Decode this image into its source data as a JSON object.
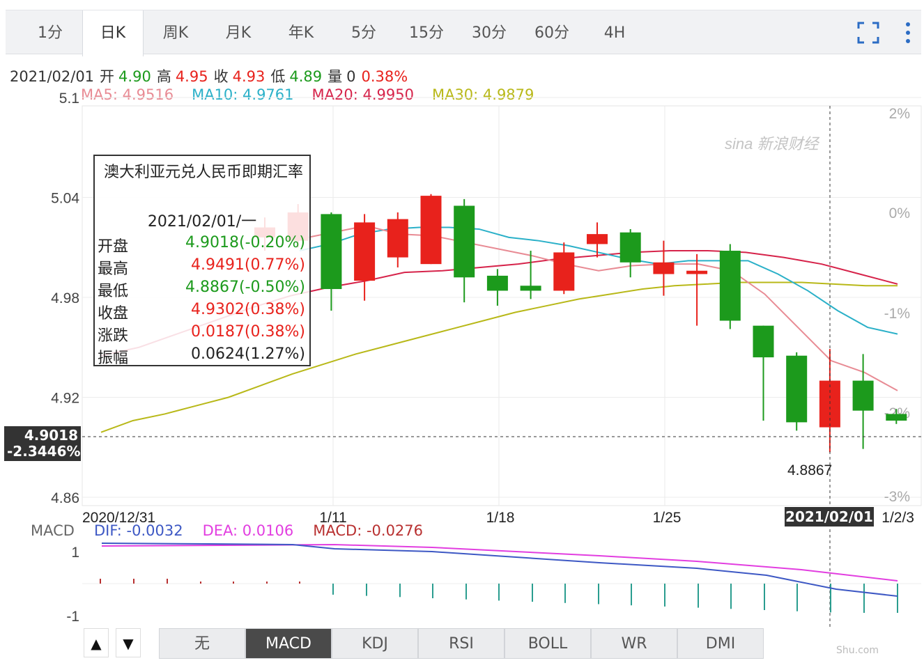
{
  "tabs": [
    {
      "label": "1分",
      "active": false
    },
    {
      "label": "日K",
      "active": true
    },
    {
      "label": "周K",
      "active": false
    },
    {
      "label": "月K",
      "active": false
    },
    {
      "label": "年K",
      "active": false
    },
    {
      "label": "5分",
      "active": false
    },
    {
      "label": "15分",
      "active": false
    },
    {
      "label": "30分",
      "active": false
    },
    {
      "label": "60分",
      "active": false
    },
    {
      "label": "4H",
      "active": false
    }
  ],
  "quote": {
    "date": "2021/02/01",
    "open_label": "开",
    "open": "4.90",
    "high_label": "高",
    "high": "4.95",
    "close_label": "收",
    "close": "4.93",
    "low_label": "低",
    "low": "4.89",
    "volume_label": "量",
    "volume": "0",
    "change": "0.38%"
  },
  "ma": {
    "ma5": "MA5: 4.9516",
    "ma10": "MA10: 4.9761",
    "ma20": "MA20: 4.9950",
    "ma30": "MA30: 4.9879"
  },
  "colors": {
    "up": "#e8221c",
    "down": "#1c9a1c",
    "ma5": "#e88b94",
    "ma10": "#2ab0c8",
    "ma20": "#d6234a",
    "ma30": "#b8b818",
    "dif": "#3d58c4",
    "dea": "#e23ee0",
    "macd": "#b83030"
  },
  "tooltip": {
    "title": "澳大利亚元兑人民币即期汇率",
    "date": "2021/02/01/一",
    "rows": [
      {
        "k": "开盘",
        "v": "4.9018(-0.20%)",
        "c": "green"
      },
      {
        "k": "最高",
        "v": "4.9491(0.77%)",
        "c": "red"
      },
      {
        "k": "最低",
        "v": "4.8867(-0.50%)",
        "c": "green"
      },
      {
        "k": "收盘",
        "v": "4.9302(0.38%)",
        "c": "red"
      },
      {
        "k": "涨跌",
        "v": "0.0187(0.38%)",
        "c": "red"
      },
      {
        "k": "振幅",
        "v": "0.0624(1.27%)",
        "c": "black"
      }
    ]
  },
  "crosshair": {
    "price": "4.9018",
    "pct": "-2.3446%",
    "date": "2021/02/01",
    "low_label": "4.8867"
  },
  "macd_legend": {
    "name": "MACD",
    "dif": "DIF: -0.0032",
    "dea": "DEA: 0.0106",
    "macd": "MACD: -0.0276"
  },
  "indicator_tabs": [
    {
      "label": "无",
      "active": false
    },
    {
      "label": "MACD",
      "active": true
    },
    {
      "label": "KDJ",
      "active": false
    },
    {
      "label": "RSI",
      "active": false
    },
    {
      "label": "BOLL",
      "active": false
    },
    {
      "label": "WR",
      "active": false
    },
    {
      "label": "DMI",
      "active": false
    }
  ],
  "nav_up": "▲",
  "nav_down": "▼",
  "watermark_text": "新浪财经",
  "corner_text": "Shu.com",
  "chart_data": {
    "type": "candlestick",
    "title": "澳大利亚元兑人民币即期汇率",
    "x_tick_labels": [
      "2020/12/31",
      "1/11",
      "1/18",
      "1/25",
      "1/2/3"
    ],
    "y_ticks": [
      5.1,
      5.04,
      4.98,
      4.92,
      4.86
    ],
    "y_tick_labels": [
      "5.1",
      "5.04",
      "4.98",
      "4.92",
      "4.86"
    ],
    "pct_ticks": [
      "2%",
      "0%",
      "-1%",
      "-2%",
      "-3%"
    ],
    "ylim": [
      4.86,
      5.1
    ],
    "candles": [
      {
        "d": "1/7",
        "o": 5.016,
        "c": 5.022,
        "h": 5.028,
        "l": 5.008
      },
      {
        "d": "1/8",
        "o": 5.014,
        "c": 5.031,
        "h": 5.036,
        "l": 5.01
      },
      {
        "d": "1/11",
        "o": 5.03,
        "c": 4.985,
        "h": 5.031,
        "l": 4.972
      },
      {
        "d": "1/12",
        "o": 4.99,
        "c": 5.025,
        "h": 5.03,
        "l": 4.978
      },
      {
        "d": "1/13",
        "o": 5.004,
        "c": 5.027,
        "h": 5.031,
        "l": 4.998
      },
      {
        "d": "1/14",
        "o": 5.0,
        "c": 5.041,
        "h": 5.042,
        "l": 5.0
      },
      {
        "d": "1/15",
        "o": 5.035,
        "c": 4.992,
        "h": 5.039,
        "l": 4.977
      },
      {
        "d": "1/18",
        "o": 4.993,
        "c": 4.984,
        "h": 4.997,
        "l": 4.975
      },
      {
        "d": "1/19",
        "o": 4.987,
        "c": 4.984,
        "h": 5.008,
        "l": 4.979
      },
      {
        "d": "1/20",
        "o": 4.984,
        "c": 5.007,
        "h": 5.013,
        "l": 4.982
      },
      {
        "d": "1/21",
        "o": 5.012,
        "c": 5.018,
        "h": 5.025,
        "l": 5.004
      },
      {
        "d": "1/22",
        "o": 5.019,
        "c": 5.001,
        "h": 5.021,
        "l": 4.992
      },
      {
        "d": "1/25",
        "o": 4.994,
        "c": 5.001,
        "h": 5.014,
        "l": 4.981
      },
      {
        "d": "1/26",
        "o": 4.994,
        "c": 4.996,
        "h": 5.006,
        "l": 4.963
      },
      {
        "d": "1/27",
        "o": 5.008,
        "c": 4.966,
        "h": 5.012,
        "l": 4.961
      },
      {
        "d": "1/28",
        "o": 4.963,
        "c": 4.944,
        "h": 4.963,
        "l": 4.906
      },
      {
        "d": "1/29",
        "o": 4.945,
        "c": 4.905,
        "h": 4.947,
        "l": 4.9
      },
      {
        "d": "2/1",
        "o": 4.902,
        "c": 4.93,
        "h": 4.949,
        "l": 4.887
      },
      {
        "d": "2/2",
        "o": 4.93,
        "c": 4.912,
        "h": 4.946,
        "l": 4.889
      },
      {
        "d": "2/3",
        "o": 4.91,
        "c": 4.906,
        "h": 4.913,
        "l": 4.904
      }
    ],
    "ma30": [
      4.899,
      4.906,
      4.91,
      4.915,
      4.92,
      4.927,
      4.934,
      4.94,
      4.946,
      4.951,
      4.956,
      4.961,
      4.966,
      4.971,
      4.975,
      4.979,
      4.982,
      4.985,
      4.987,
      4.988,
      4.989,
      4.989,
      4.989,
      4.988,
      4.987,
      4.987
    ],
    "ma20": [
      4.945,
      4.95,
      4.958,
      4.966,
      4.974,
      4.981,
      4.986,
      4.99,
      4.995,
      4.996,
      4.998,
      5.0,
      5.003,
      5.005,
      5.007,
      5.008,
      5.008,
      5.007,
      5.004,
      5.0,
      4.994,
      4.988
    ],
    "ma10": [
      5.008,
      5.012,
      5.018,
      5.021,
      5.022,
      5.022,
      5.021,
      5.016,
      5.014,
      5.011,
      5.007,
      5.003,
      5.0,
      5.002,
      5.002,
      5.002,
      4.994,
      4.984,
      4.972,
      4.962,
      4.958
    ],
    "ma5": [
      5.015,
      5.019,
      5.023,
      5.018,
      5.017,
      5.013,
      5.009,
      5.005,
      5.0,
      4.996,
      4.999,
      5.0,
      5.0,
      4.996,
      4.982,
      4.962,
      4.942,
      4.935,
      4.924
    ],
    "macd": {
      "dif": [
        0.0065,
        0.0064,
        0.0062,
        0.006,
        0.0058,
        0.0055,
        0.005,
        0.004,
        0.003,
        0.002,
        0.001,
        0.0,
        -0.001,
        -0.0015,
        -0.002,
        -0.0025,
        -0.003,
        -0.0032
      ],
      "dea": [
        0.0106,
        0.0105,
        0.0104,
        0.0104,
        0.0103,
        0.0103,
        0.0102,
        0.0101,
        0.01,
        0.0098,
        0.0095,
        0.009,
        0.0085,
        0.008,
        0.0075,
        0.007,
        0.0065,
        0.0106
      ],
      "ylim": [
        -1,
        1
      ]
    }
  }
}
